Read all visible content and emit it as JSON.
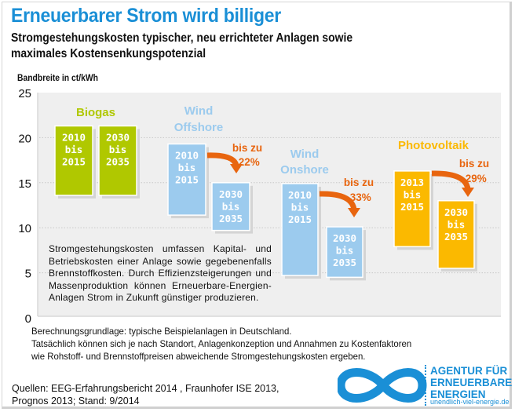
{
  "header": {
    "title": "Erneuerbarer Strom wird billiger",
    "subtitle_line1": "Stromgestehungskosten typischer, neu errichteter Anlagen sowie",
    "subtitle_line2": "maximales Kostensenkungspotenzial",
    "unit_label": "Bandbreite in ct/kWh"
  },
  "chart_data": {
    "type": "bar",
    "subtype": "floating-range",
    "title": "Erneuerbarer Strom wird billiger",
    "ylabel": "Bandbreite in ct/kWh",
    "xlabel": "",
    "ylim": [
      0,
      25
    ],
    "yticks": [
      0,
      5,
      10,
      15,
      20,
      25
    ],
    "grid": true,
    "categories": [
      "Biogas",
      "Wind Offshore",
      "Wind Onshore",
      "Photovoltaik"
    ],
    "groups": [
      {
        "name": "Biogas",
        "label_lines": [
          "Biogas"
        ],
        "color": "#b0c800",
        "reduction": null,
        "bars": [
          {
            "period": [
              "2010",
              "bis",
              "2015"
            ],
            "low": 13.6,
            "high": 21.3
          },
          {
            "period": [
              "2030",
              "bis",
              "2035"
            ],
            "low": 13.6,
            "high": 21.3
          }
        ]
      },
      {
        "name": "Wind Offshore",
        "label_lines": [
          "Wind",
          "Offshore"
        ],
        "color": "#9ccbee",
        "reduction": {
          "line1": "bis zu",
          "line2": "-22%"
        },
        "bars": [
          {
            "period": [
              "2010",
              "bis",
              "2015"
            ],
            "low": 11.4,
            "high": 19.3
          },
          {
            "period": [
              "2030",
              "bis",
              "2035"
            ],
            "low": 9.7,
            "high": 15.0
          }
        ]
      },
      {
        "name": "Wind Onshore",
        "label_lines": [
          "Wind",
          "Onshore"
        ],
        "color": "#9ccbee",
        "reduction": {
          "line1": "bis zu",
          "line2": "-33%"
        },
        "bars": [
          {
            "period": [
              "2010",
              "bis",
              "2015"
            ],
            "low": 4.7,
            "high": 14.9
          },
          {
            "period": [
              "2030",
              "bis",
              "2035"
            ],
            "low": 4.5,
            "high": 10.1
          }
        ]
      },
      {
        "name": "Photovoltaik",
        "label_lines": [
          "Photovoltaik"
        ],
        "color": "#fbb900",
        "reduction": {
          "line1": "bis zu",
          "line2": "-29%"
        },
        "bars": [
          {
            "period": [
              "2013",
              "bis",
              "2015"
            ],
            "low": 7.9,
            "high": 16.3
          },
          {
            "period": [
              "2030",
              "bis",
              "2035"
            ],
            "low": 5.5,
            "high": 13.0
          }
        ]
      }
    ],
    "annotation_color": "#e8650f"
  },
  "note": "Stromgestehungskosten umfassen Kapital- und Betriebskosten einer Anlage sowie gegebenenfalls Brennstoffkosten. Durch Effizienzsteigerungen und Massenproduktion können Erneuerbare-Energien-Anlagen Strom in Zukunft günstiger produzieren.",
  "footer": {
    "basis_line1": "Berechnungsgrundlage: typische Beispielanlagen in Deutschland.",
    "basis_line2": "Tatsächlich können sich je nach Standort, Anlagenkonzeption und Annahmen zu Kostenfaktoren",
    "basis_line3": "wie Rohstoff- und Brennstoffpreisen abweichende Stromgestehungskosten ergeben.",
    "sources_line1": "Quellen: EEG-Erfahrungsbericht 2014 , Fraunhofer ISE 2013,",
    "sources_line2": "Prognos 2013; Stand: 9/2014"
  },
  "logo": {
    "line1": "AGENTUR FÜR",
    "line2": "ERNEUERBARE",
    "line3": "ENERGIEN",
    "url": "unendlich-viel-energie.de",
    "color": "#1a8fd6"
  }
}
